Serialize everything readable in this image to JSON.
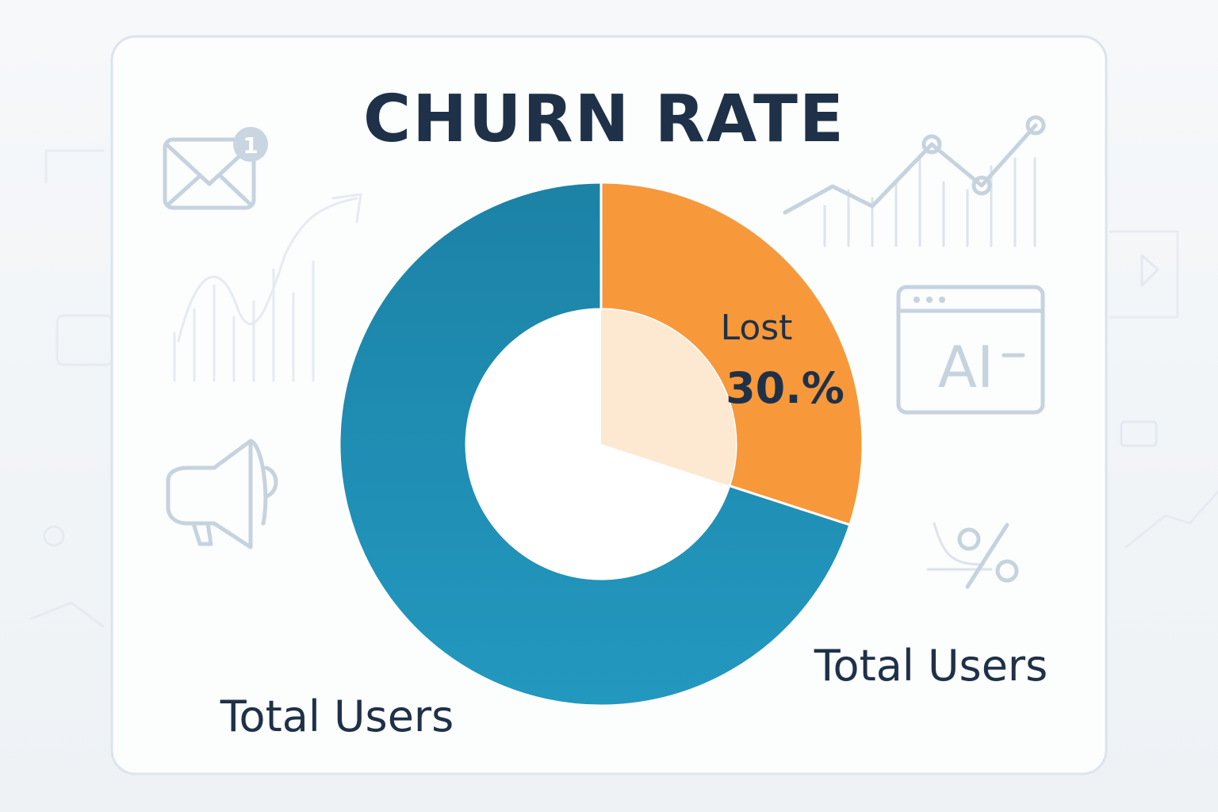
{
  "chart_data": {
    "type": "pie",
    "title": "CHURN RATE",
    "slices": [
      {
        "label": "Lost",
        "value": 30,
        "value_label": "30.%",
        "color": "#f7983a"
      },
      {
        "label": "Total Users",
        "value": 70,
        "color": "#1f8db3"
      }
    ],
    "extra_labels": [
      "Total Users",
      "Total Users"
    ],
    "donut": true
  },
  "decorations": {
    "mail_badge": "1",
    "ai_window_text": "AI",
    "icons": [
      "mail-icon",
      "megaphone-icon",
      "ai-window-icon",
      "percent-icon",
      "line-chart-icon",
      "bar-chart-icon",
      "play-icon"
    ]
  },
  "colors": {
    "title": "#1f3148",
    "lost_slice": "#f7983a",
    "lost_inner": "#fde8d2",
    "users_slice": "#1f8db3",
    "card_border": "#dce4ec"
  }
}
